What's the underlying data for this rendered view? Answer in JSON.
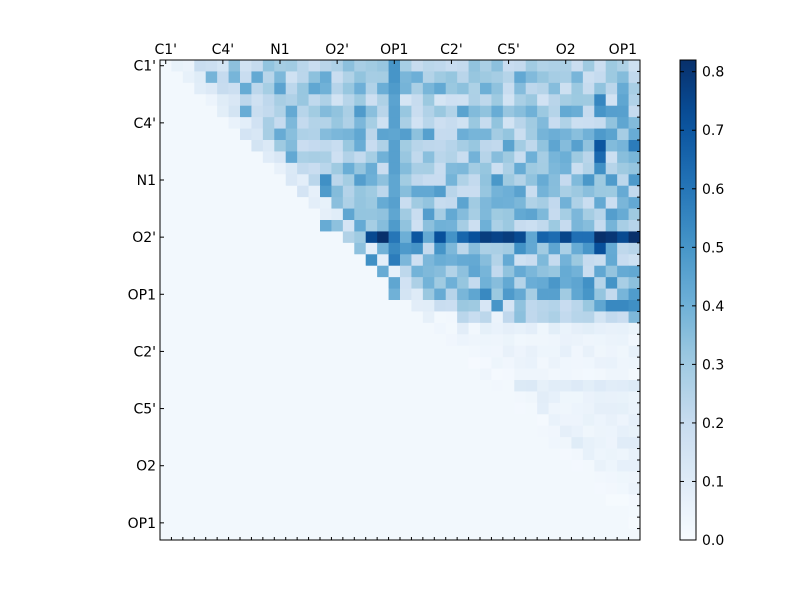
{
  "chart_data": {
    "type": "heatmap",
    "title": "",
    "xlabel": "",
    "ylabel": "",
    "grid": false,
    "n": 42,
    "tick_labels": [
      "C1'",
      "C4'",
      "N1",
      "O2'",
      "OP1",
      "C2'",
      "C5'",
      "O2",
      "OP1"
    ],
    "tick_positions": [
      0,
      5,
      10,
      15,
      20,
      25,
      30,
      35,
      40
    ],
    "color_scale": {
      "min": 0.0,
      "max": 0.82,
      "colormap": "Blues"
    },
    "colorbar_ticks": [
      "0.0",
      "0.1",
      "0.2",
      "0.3",
      "0.4",
      "0.5",
      "0.6",
      "0.7",
      "0.8"
    ],
    "colorbar_values": [
      0.0,
      0.1,
      0.2,
      0.3,
      0.4,
      0.5,
      0.6,
      0.7,
      0.8
    ],
    "base_level": 0.02,
    "row_levels": [
      0.24,
      0.3,
      0.31,
      0.22,
      0.33,
      0.26,
      0.34,
      0.32,
      0.3,
      0.3,
      0.34,
      0.33,
      0.31,
      0.33,
      0.3,
      0.6,
      0.36,
      0.3,
      0.31,
      0.36,
      0.38,
      0.24,
      0.26,
      0.06,
      0.04,
      0.05,
      0.04,
      0.03,
      0.08,
      0.06,
      0.06,
      0.05,
      0.06,
      0.07,
      0.07,
      0.06,
      0.05,
      0.05,
      0.02,
      0.04,
      0.02,
      0.02
    ],
    "strong_cells": [
      [
        0,
        20,
        0.5
      ],
      [
        1,
        20,
        0.5
      ],
      [
        2,
        20,
        0.48
      ],
      [
        3,
        20,
        0.45
      ],
      [
        4,
        20,
        0.46
      ],
      [
        5,
        20,
        0.46
      ],
      [
        6,
        20,
        0.44
      ],
      [
        7,
        20,
        0.46
      ],
      [
        8,
        20,
        0.46
      ],
      [
        9,
        20,
        0.46
      ],
      [
        10,
        20,
        0.44
      ],
      [
        11,
        20,
        0.44
      ],
      [
        12,
        20,
        0.46
      ],
      [
        13,
        20,
        0.44
      ],
      [
        14,
        20,
        0.48
      ],
      [
        15,
        20,
        0.6
      ],
      [
        16,
        20,
        0.54
      ],
      [
        17,
        20,
        0.58
      ],
      [
        19,
        20,
        0.44
      ],
      [
        20,
        20,
        0.4
      ],
      [
        15,
        22,
        0.7
      ],
      [
        15,
        24,
        0.72
      ],
      [
        15,
        27,
        0.72
      ],
      [
        15,
        28,
        0.78
      ],
      [
        15,
        29,
        0.76
      ],
      [
        15,
        30,
        0.78
      ],
      [
        15,
        31,
        0.74
      ],
      [
        15,
        33,
        0.66
      ],
      [
        15,
        36,
        0.62
      ],
      [
        15,
        37,
        0.62
      ],
      [
        15,
        38,
        0.82
      ],
      [
        15,
        39,
        0.8
      ],
      [
        15,
        41,
        0.82
      ],
      [
        16,
        38,
        0.72
      ],
      [
        3,
        38,
        0.55
      ],
      [
        4,
        38,
        0.5
      ],
      [
        7,
        38,
        0.7
      ],
      [
        8,
        38,
        0.64
      ],
      [
        9,
        38,
        0.52
      ],
      [
        2,
        40,
        0.42
      ],
      [
        3,
        40,
        0.44
      ],
      [
        4,
        40,
        0.46
      ],
      [
        5,
        40,
        0.44
      ],
      [
        7,
        41,
        0.58
      ],
      [
        1,
        14,
        0.42
      ],
      [
        2,
        14,
        0.4
      ],
      [
        10,
        14,
        0.52
      ],
      [
        11,
        14,
        0.48
      ],
      [
        14,
        14,
        0.42
      ],
      [
        14,
        15,
        0.34
      ],
      [
        13,
        16,
        0.44
      ],
      [
        15,
        16,
        0.26
      ],
      [
        16,
        17,
        0.34
      ],
      [
        17,
        18,
        0.52
      ],
      [
        18,
        19,
        0.42
      ],
      [
        20,
        33,
        0.46
      ],
      [
        20,
        34,
        0.46
      ],
      [
        21,
        38,
        0.44
      ],
      [
        21,
        39,
        0.54
      ],
      [
        21,
        40,
        0.54
      ],
      [
        21,
        41,
        0.52
      ],
      [
        21,
        29,
        0.5
      ],
      [
        20,
        27,
        0.44
      ],
      [
        20,
        24,
        0.42
      ]
    ]
  }
}
